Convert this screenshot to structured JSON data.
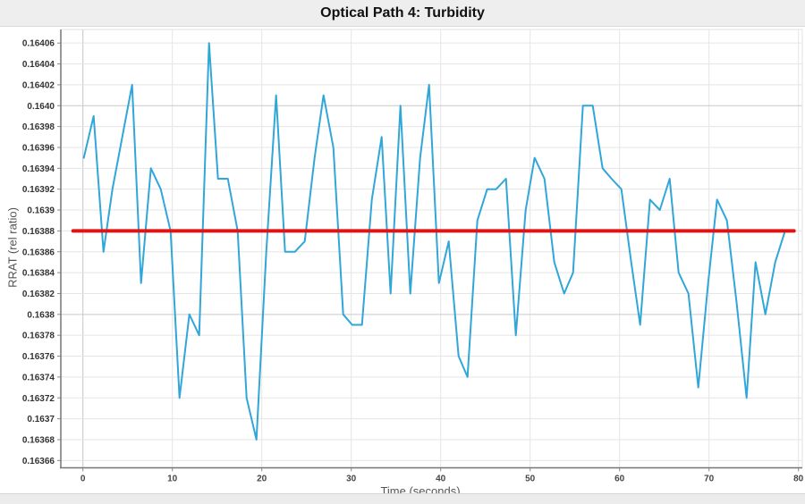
{
  "header": {
    "title": "Optical Path 4: Turbidity"
  },
  "chart_data": {
    "type": "line",
    "title": "Optical Path 4: Turbidity",
    "xlabel": "Time (seconds)",
    "ylabel": "RRAT (rel ratio)",
    "xlim": [
      -2.47,
      80.43
    ],
    "ylim": [
      0.163653,
      0.164073
    ],
    "grid": true,
    "legend": "none",
    "xticks": [
      {
        "value": 0,
        "label": "0"
      },
      {
        "value": 10,
        "label": "10"
      },
      {
        "value": 20,
        "label": "20"
      },
      {
        "value": 30,
        "label": "30"
      },
      {
        "value": 40,
        "label": "40"
      },
      {
        "value": 50,
        "label": "50"
      },
      {
        "value": 60,
        "label": "60"
      },
      {
        "value": 70,
        "label": "70"
      },
      {
        "value": 80,
        "label": "80"
      }
    ],
    "yticks": [
      {
        "value": 0.16406,
        "label": "0.16406",
        "major": false
      },
      {
        "value": 0.16404,
        "label": "0.16404",
        "major": false
      },
      {
        "value": 0.16402,
        "label": "0.16402",
        "major": false
      },
      {
        "value": 0.164,
        "label": "0.1640",
        "major": true
      },
      {
        "value": 0.16398,
        "label": "0.16398",
        "major": false
      },
      {
        "value": 0.16396,
        "label": "0.16396",
        "major": false
      },
      {
        "value": 0.16394,
        "label": "0.16394",
        "major": false
      },
      {
        "value": 0.16392,
        "label": "0.16392",
        "major": false
      },
      {
        "value": 0.1639,
        "label": "0.1639",
        "major": false
      },
      {
        "value": 0.16388,
        "label": "0.16388",
        "major": false
      },
      {
        "value": 0.16386,
        "label": "0.16386",
        "major": false
      },
      {
        "value": 0.16384,
        "label": "0.16384",
        "major": false
      },
      {
        "value": 0.16382,
        "label": "0.16382",
        "major": false
      },
      {
        "value": 0.1638,
        "label": "0.1638",
        "major": true
      },
      {
        "value": 0.16378,
        "label": "0.16378",
        "major": false
      },
      {
        "value": 0.16376,
        "label": "0.16376",
        "major": false
      },
      {
        "value": 0.16374,
        "label": "0.16374",
        "major": false
      },
      {
        "value": 0.16372,
        "label": "0.16372",
        "major": false
      },
      {
        "value": 0.1637,
        "label": "0.1637",
        "major": false
      },
      {
        "value": 0.16368,
        "label": "0.16368",
        "major": false
      },
      {
        "value": 0.16366,
        "label": "0.16366",
        "major": false
      }
    ],
    "series": [
      {
        "name": "turbidity-rrat",
        "color": "#31a6d9",
        "width": 2,
        "points": [
          [
            0.1,
            0.16395
          ],
          [
            1.2,
            0.16399
          ],
          [
            2.3,
            0.16386
          ],
          [
            3.3,
            0.16392
          ],
          [
            4.4,
            0.16397
          ],
          [
            5.5,
            0.16402
          ],
          [
            6.5,
            0.16383
          ],
          [
            7.6,
            0.16394
          ],
          [
            8.7,
            0.16392
          ],
          [
            9.8,
            0.16388
          ],
          [
            10.8,
            0.16372
          ],
          [
            11.9,
            0.1638
          ],
          [
            13.0,
            0.16378
          ],
          [
            14.1,
            0.16406
          ],
          [
            15.1,
            0.16393
          ],
          [
            16.2,
            0.16393
          ],
          [
            17.3,
            0.16388
          ],
          [
            18.3,
            0.16372
          ],
          [
            19.4,
            0.16368
          ],
          [
            20.5,
            0.16386
          ],
          [
            21.6,
            0.16401
          ],
          [
            22.6,
            0.16386
          ],
          [
            23.7,
            0.16386
          ],
          [
            24.8,
            0.16387
          ],
          [
            25.9,
            0.16395
          ],
          [
            26.9,
            0.16401
          ],
          [
            28.0,
            0.16396
          ],
          [
            29.1,
            0.1638
          ],
          [
            30.1,
            0.16379
          ],
          [
            31.2,
            0.16379
          ],
          [
            32.3,
            0.16391
          ],
          [
            33.4,
            0.16397
          ],
          [
            34.4,
            0.16382
          ],
          [
            35.5,
            0.164
          ],
          [
            36.6,
            0.16382
          ],
          [
            37.7,
            0.16395
          ],
          [
            38.7,
            0.16402
          ],
          [
            39.8,
            0.16383
          ],
          [
            40.9,
            0.16387
          ],
          [
            42.0,
            0.16376
          ],
          [
            43.0,
            0.16374
          ],
          [
            44.1,
            0.16389
          ],
          [
            45.2,
            0.16392
          ],
          [
            46.2,
            0.16392
          ],
          [
            47.3,
            0.16393
          ],
          [
            48.4,
            0.16378
          ],
          [
            49.5,
            0.1639
          ],
          [
            50.5,
            0.16395
          ],
          [
            51.6,
            0.16393
          ],
          [
            52.7,
            0.16385
          ],
          [
            53.8,
            0.16382
          ],
          [
            54.8,
            0.16384
          ],
          [
            55.9,
            0.164
          ],
          [
            57.0,
            0.164
          ],
          [
            58.1,
            0.16394
          ],
          [
            59.1,
            0.16393
          ],
          [
            60.2,
            0.16392
          ],
          [
            61.3,
            0.16385
          ],
          [
            62.3,
            0.16379
          ],
          [
            63.4,
            0.16391
          ],
          [
            64.5,
            0.1639
          ],
          [
            65.6,
            0.16393
          ],
          [
            66.6,
            0.16384
          ],
          [
            67.7,
            0.16382
          ],
          [
            68.8,
            0.16373
          ],
          [
            69.9,
            0.16383
          ],
          [
            70.9,
            0.16391
          ],
          [
            72.0,
            0.16389
          ],
          [
            73.1,
            0.16381
          ],
          [
            74.2,
            0.16372
          ],
          [
            75.2,
            0.16385
          ],
          [
            76.3,
            0.1638
          ],
          [
            77.4,
            0.16385
          ],
          [
            78.5,
            0.16388
          ]
        ]
      }
    ],
    "trend_line": {
      "name": "mean-line",
      "color": "#e11414",
      "width": 4,
      "value": 0.16388,
      "x_start": -1.1,
      "x_end": 79.5
    },
    "colors": {
      "grid_minor": "#e5e5e5",
      "grid_major": "#c9c9c9",
      "grid_zero_x": "#c4c4c4",
      "frame": "#e2e2e2",
      "axis": "#767676",
      "tick": "#8a8a8a"
    }
  }
}
